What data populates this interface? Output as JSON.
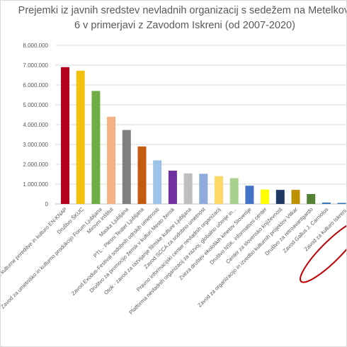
{
  "chart_data": {
    "type": "bar",
    "title_lines": [
      "Prejemki iz javnih sredstev nevladnih  organizacij s sedežem na Metelkovi",
      "6 v primerjavi z Zavodom Iskreni (od 2007-2020)"
    ],
    "xlabel": "",
    "ylabel": "",
    "ylim": [
      0,
      8000000
    ],
    "y_ticks": [
      0,
      1000000,
      2000000,
      3000000,
      4000000,
      5000000,
      6000000,
      7000000,
      8000000
    ],
    "y_tick_labels": [
      "0",
      "1.000.000",
      "2.000.000",
      "3.000.000",
      "4.000.000",
      "5.000.000",
      "6.000.000",
      "7.000.000",
      "8.000.000"
    ],
    "grid": true,
    "categories": [
      "Zavod za kulturne prireditve in kulturo EN-KNAP",
      "Društvo ŠKUC",
      "Zavod za umetniško in kulturno produkcijo Forum Ljubljana",
      "Mirovni inštitut",
      "Maska Ljubljana",
      "PTL - Plesni Teater Ljubljana",
      "Zavod Exodus-Festival sodobnih odrskih umetnosti",
      "Društvo za promocijo žensk v kulturi Mesto žensk",
      "Otok - zavod za razvijanje filmske kulture Ljubljana",
      "Zavod SCCA za sodobno umetnost",
      "Pravno informacijski center nevladnih organizacij",
      "Platforma nevladnih organizacij za razvoj, globalno učenje in...",
      "Zveza društev ekoloških kmetov Slovenije",
      "Društvo NSK, informativni center",
      "Center za slovensko književnost",
      "Zavod za organizacijo in izvedbo kulturnih projektov Vitkar",
      "Društvo za retroavantgardo",
      "Zavod Gallus J. Carniolus",
      "Zavod za kulturo Iskreni"
    ],
    "values": [
      6900000,
      6720000,
      5700000,
      4400000,
      3730000,
      2900000,
      2200000,
      1680000,
      1540000,
      1520000,
      1400000,
      1300000,
      920000,
      730000,
      710000,
      710000,
      500000,
      70000,
      0
    ],
    "colors": [
      "#b3001b",
      "#f2c10f",
      "#70ad47",
      "#f4b183",
      "#7f7f7f",
      "#c55a11",
      "#9dc3e6",
      "#7030a0",
      "#bfbfbf",
      "#8faadc",
      "#ffd966",
      "#a9d18e",
      "#4472c4",
      "#ffff00",
      "#203864",
      "#bf9000",
      "#548235",
      "#2e75b6",
      "#2e75b6"
    ],
    "highlight": {
      "shape": "ellipse",
      "color": "#c00000",
      "category": "Zavod za kulturo Iskreni"
    }
  }
}
